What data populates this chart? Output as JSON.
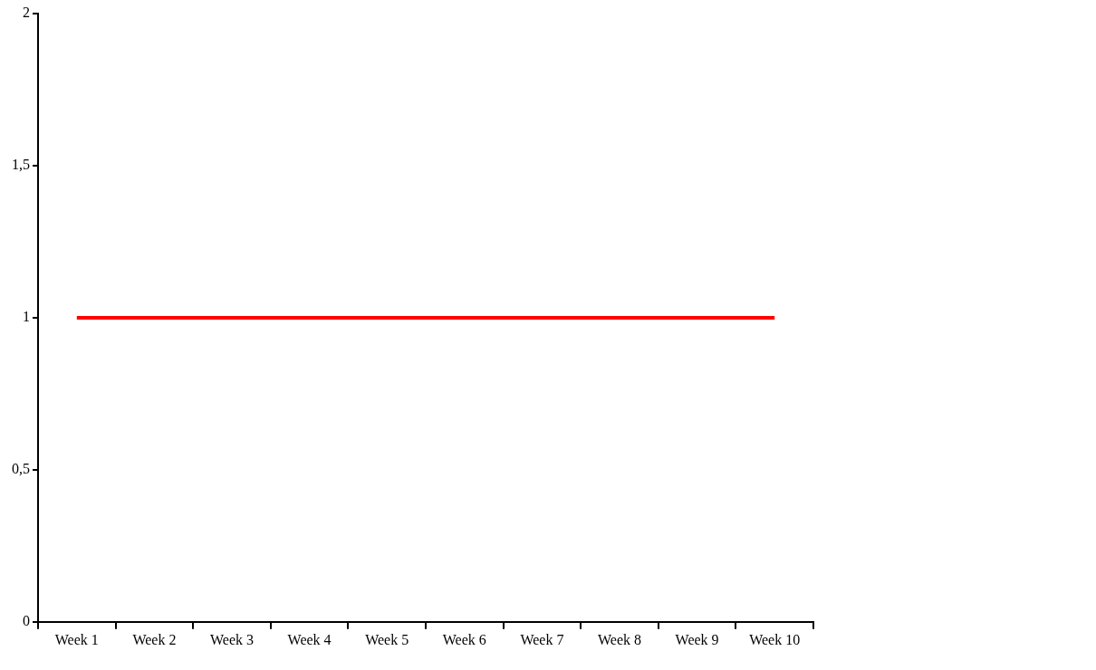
{
  "chart_data": {
    "type": "line",
    "categories": [
      "Week 1",
      "Week 2",
      "Week 3",
      "Week 4",
      "Week 5",
      "Week 6",
      "Week 7",
      "Week 8",
      "Week 9",
      "Week 10"
    ],
    "series": [
      {
        "color": "#ff0000",
        "values": [
          1,
          1,
          1,
          1,
          1,
          1,
          1,
          1,
          1,
          1
        ]
      }
    ],
    "ylim": [
      0,
      2
    ],
    "yticks": [
      0,
      {
        "value": 0.5,
        "label": "0,5"
      },
      1,
      {
        "value": 1.5,
        "label": "1,5"
      },
      2
    ],
    "grid": false,
    "legend": false,
    "marker": "none",
    "line_style": "solid"
  }
}
